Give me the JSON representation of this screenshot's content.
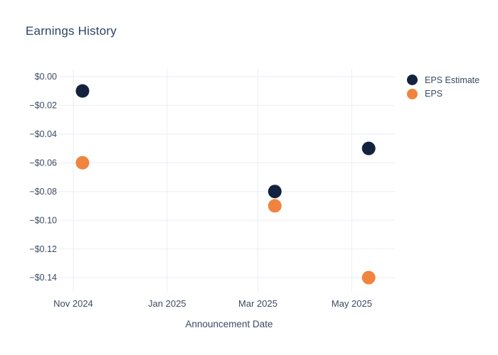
{
  "page": {
    "background": "#ffffff"
  },
  "chart_data": {
    "type": "scatter",
    "title": "Earnings History",
    "xlabel": "Announcement Date",
    "ylabel": "",
    "grid": true,
    "legend_position": "right-top",
    "x_axis": {
      "ticks": [
        {
          "label": "Nov 2024",
          "date": "2024-11-01"
        },
        {
          "label": "Jan 2025",
          "date": "2025-01-01"
        },
        {
          "label": "Mar 2025",
          "date": "2025-03-01"
        },
        {
          "label": "May 2025",
          "date": "2025-05-01"
        }
      ],
      "range_dates": [
        "2024-10-26",
        "2025-05-29"
      ]
    },
    "y_axis": {
      "ticks": [
        {
          "label": "$0.00",
          "value": 0
        },
        {
          "label": "−$0.02",
          "value": -0.02
        },
        {
          "label": "−$0.04",
          "value": -0.04
        },
        {
          "label": "−$0.06",
          "value": -0.06
        },
        {
          "label": "−$0.08",
          "value": -0.08
        },
        {
          "label": "−$0.10",
          "value": -0.1
        },
        {
          "label": "−$0.12",
          "value": -0.12
        },
        {
          "label": "−$0.14",
          "value": -0.14
        }
      ],
      "range": [
        0.0054,
        -0.1469
      ]
    },
    "series": [
      {
        "name": "EPS Estimate",
        "color": "#13233f",
        "points": [
          {
            "date": "2024-11-07",
            "value": -0.01
          },
          {
            "date": "2025-03-12",
            "value": -0.08
          },
          {
            "date": "2025-05-12",
            "value": -0.05
          }
        ]
      },
      {
        "name": "EPS",
        "color": "#f0843e",
        "points": [
          {
            "date": "2024-11-07",
            "value": -0.06
          },
          {
            "date": "2025-03-12",
            "value": -0.09
          },
          {
            "date": "2025-05-12",
            "value": -0.14
          }
        ]
      }
    ],
    "theme": {
      "title_color": "#2c4263",
      "tick_label_color": "#3c4a63",
      "axis_title_color": "#3c4a63",
      "legend_text_color": "#3c4a63",
      "grid_color": "#e9eef6"
    }
  }
}
